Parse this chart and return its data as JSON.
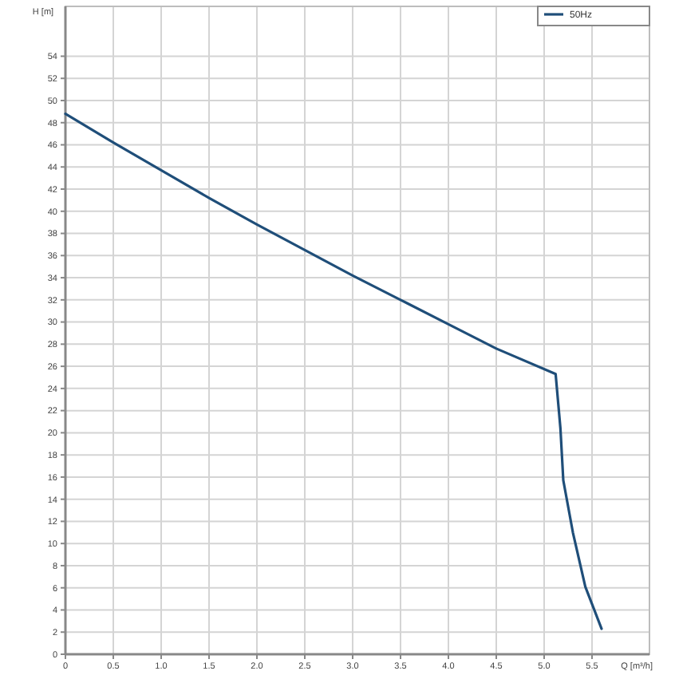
{
  "chart_data": {
    "type": "line",
    "xlabel": "Q [m³/h]",
    "ylabel": "H [m]",
    "xlim": [
      0,
      6.1
    ],
    "ylim": [
      0,
      58.5
    ],
    "xticks": [
      {
        "value": 0,
        "label": "0"
      },
      {
        "value": 0.5,
        "label": "0.5"
      },
      {
        "value": 1,
        "label": "1.0"
      },
      {
        "value": 1.5,
        "label": "1.5"
      },
      {
        "value": 2,
        "label": "2.0"
      },
      {
        "value": 2.5,
        "label": "2.5"
      },
      {
        "value": 3,
        "label": "3.0"
      },
      {
        "value": 3.5,
        "label": "3.5"
      },
      {
        "value": 4,
        "label": "4.0"
      },
      {
        "value": 4.5,
        "label": "4.5"
      },
      {
        "value": 5,
        "label": "5.0"
      },
      {
        "value": 5.5,
        "label": "5.5"
      }
    ],
    "yticks": [
      0,
      2,
      4,
      6,
      8,
      10,
      12,
      14,
      16,
      18,
      20,
      22,
      24,
      26,
      28,
      30,
      32,
      34,
      36,
      38,
      40,
      42,
      44,
      46,
      48,
      50,
      52,
      54
    ],
    "grid": true,
    "legend": "top right",
    "marker": "none",
    "line_style": "solid",
    "series": [
      {
        "name": "50Hz",
        "color": "#1f4e79",
        "x": [
          0,
          0.5,
          1,
          1.5,
          2,
          2.5,
          3,
          3.5,
          4,
          4.5,
          5.12,
          5.17,
          5.2,
          5.3,
          5.43,
          5.6
        ],
        "values": [
          48.8,
          46.2,
          43.7,
          41.2,
          38.8,
          36.5,
          34.2,
          32.0,
          29.8,
          27.6,
          25.3,
          20.4,
          15.7,
          11,
          6.1,
          2.3
        ]
      }
    ]
  }
}
